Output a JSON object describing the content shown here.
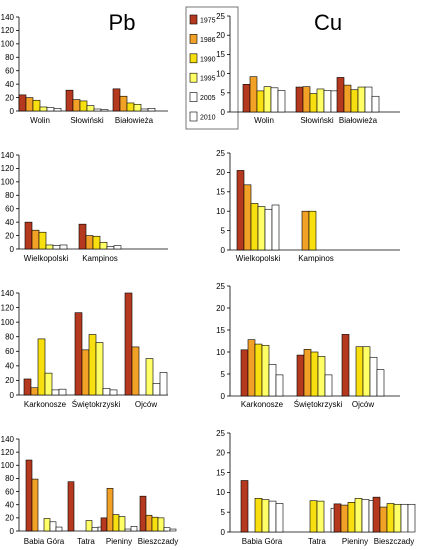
{
  "figure": {
    "title_left": "Pb",
    "title_right": "Cu"
  },
  "legend": {
    "entries": [
      {
        "label": "1975",
        "color": "#b5391e"
      },
      {
        "label": "1986",
        "color": "#f2a127"
      },
      {
        "label": "1990",
        "color": "#f7df10"
      },
      {
        "label": "1995",
        "color": "#ffff66"
      },
      {
        "label": "2005",
        "color": "#ffffff"
      },
      {
        "label": "2010",
        "color": "#ffffff"
      }
    ]
  },
  "chart_data": [
    {
      "type": "bar",
      "panel": "pb-row-1",
      "element": "Pb",
      "categories": [
        "Wolin",
        "Słowiński",
        "Białowieża"
      ],
      "ylim": [
        0,
        140
      ],
      "yticks": [
        0,
        20,
        40,
        60,
        80,
        100,
        120,
        140
      ],
      "series": [
        {
          "name": "1975",
          "values": [
            24,
            31,
            33
          ]
        },
        {
          "name": "1986",
          "values": [
            20,
            17,
            22
          ]
        },
        {
          "name": "1990",
          "values": [
            16,
            15,
            12
          ]
        },
        {
          "name": "1995",
          "values": [
            6,
            8,
            10
          ]
        },
        {
          "name": "2005",
          "values": [
            5,
            3,
            3
          ]
        },
        {
          "name": "2010",
          "values": [
            4,
            2,
            4
          ]
        }
      ]
    },
    {
      "type": "bar",
      "panel": "cu-row-1",
      "element": "Cu",
      "categories": [
        "Wolin",
        "Słowiński",
        "Białowieża"
      ],
      "ylim": [
        0,
        25
      ],
      "yticks": [
        0,
        5,
        10,
        15,
        20,
        25
      ],
      "series": [
        {
          "name": "1975",
          "values": [
            7.2,
            6.5,
            9.0
          ]
        },
        {
          "name": "1986",
          "values": [
            9.2,
            6.6,
            7.0
          ]
        },
        {
          "name": "1990",
          "values": [
            5.5,
            4.8,
            5.8
          ]
        },
        {
          "name": "1995",
          "values": [
            6.6,
            6.0,
            6.5
          ]
        },
        {
          "name": "2005",
          "values": [
            6.3,
            5.6,
            6.5
          ]
        },
        {
          "name": "2010",
          "values": [
            5.6,
            5.5,
            4.1
          ]
        }
      ]
    },
    {
      "type": "bar",
      "panel": "pb-row-2",
      "element": "Pb",
      "categories": [
        "Wielkopolski",
        "Kampinos"
      ],
      "ylim": [
        0,
        140
      ],
      "yticks": [
        0,
        20,
        40,
        60,
        80,
        100,
        120,
        140
      ],
      "series": [
        {
          "name": "1975",
          "values": [
            40,
            37
          ]
        },
        {
          "name": "1986",
          "values": [
            28,
            20
          ]
        },
        {
          "name": "1990",
          "values": [
            25,
            19
          ]
        },
        {
          "name": "1995",
          "values": [
            6,
            10
          ]
        },
        {
          "name": "2005",
          "values": [
            5,
            4
          ]
        },
        {
          "name": "2010",
          "values": [
            6,
            5
          ]
        }
      ]
    },
    {
      "type": "bar",
      "panel": "cu-row-2",
      "element": "Cu",
      "categories": [
        "Wielkopolski",
        "Kampinos"
      ],
      "ylim": [
        0,
        25
      ],
      "yticks": [
        0,
        5,
        10,
        15,
        20,
        25
      ],
      "series": [
        {
          "name": "1975",
          "values": [
            20.5,
            null
          ]
        },
        {
          "name": "1986",
          "values": [
            16.8,
            10.0
          ]
        },
        {
          "name": "1990",
          "values": [
            12.0,
            10.0
          ]
        },
        {
          "name": "1995",
          "values": [
            11.2,
            null
          ]
        },
        {
          "name": "2005",
          "values": [
            10.5,
            null
          ]
        },
        {
          "name": "2010",
          "values": [
            11.6,
            null
          ]
        }
      ]
    },
    {
      "type": "bar",
      "panel": "pb-row-3",
      "element": "Pb",
      "categories": [
        "Karkonosze",
        "Świętokrzyski",
        "Ojców"
      ],
      "ylim": [
        0,
        140
      ],
      "yticks": [
        0,
        20,
        40,
        60,
        80,
        100,
        120,
        140
      ],
      "series": [
        {
          "name": "1975",
          "values": [
            22,
            113,
            140
          ]
        },
        {
          "name": "1986",
          "values": [
            10,
            62,
            66
          ]
        },
        {
          "name": "1990",
          "values": [
            77,
            83,
            null
          ]
        },
        {
          "name": "1995",
          "values": [
            30,
            72,
            50
          ]
        },
        {
          "name": "2005",
          "values": [
            7,
            9,
            16
          ]
        },
        {
          "name": "2010",
          "values": [
            8,
            7,
            31
          ]
        }
      ]
    },
    {
      "type": "bar",
      "panel": "cu-row-3",
      "element": "Cu",
      "categories": [
        "Karkonosze",
        "Świętokrzyski",
        "Ojców"
      ],
      "ylim": [
        0,
        25
      ],
      "yticks": [
        0,
        5,
        10,
        15,
        20,
        25
      ],
      "series": [
        {
          "name": "1975",
          "values": [
            10.5,
            9.3,
            14.0
          ]
        },
        {
          "name": "1986",
          "values": [
            12.8,
            10.6,
            null
          ]
        },
        {
          "name": "1990",
          "values": [
            11.8,
            10.0,
            11.2
          ]
        },
        {
          "name": "1995",
          "values": [
            11.5,
            9.0,
            11.2
          ]
        },
        {
          "name": "2005",
          "values": [
            7.2,
            4.8,
            8.8
          ]
        },
        {
          "name": "2010",
          "values": [
            4.8,
            null,
            6.0
          ]
        }
      ]
    },
    {
      "type": "bar",
      "panel": "pb-row-4",
      "element": "Pb",
      "categories": [
        "Babia Góra",
        "Tatra",
        "Pieniny",
        "Bieszczady"
      ],
      "ylim": [
        0,
        140
      ],
      "yticks": [
        0,
        20,
        40,
        60,
        80,
        100,
        120,
        140
      ],
      "series": [
        {
          "name": "1975",
          "values": [
            108,
            75,
            20,
            53
          ]
        },
        {
          "name": "1986",
          "values": [
            79,
            null,
            65,
            24
          ]
        },
        {
          "name": "1990",
          "values": [
            null,
            null,
            25,
            21
          ]
        },
        {
          "name": "1995",
          "values": [
            19,
            16,
            22,
            20
          ]
        },
        {
          "name": "2005",
          "values": [
            14,
            5,
            3,
            5
          ]
        },
        {
          "name": "2010",
          "values": [
            6,
            6,
            7,
            3
          ]
        }
      ]
    },
    {
      "type": "bar",
      "panel": "cu-row-4",
      "element": "Cu",
      "categories": [
        "Babia Góra",
        "Tatra",
        "Pieniny",
        "Bieszczady"
      ],
      "ylim": [
        0,
        25
      ],
      "yticks": [
        0,
        5,
        10,
        15,
        20,
        25
      ],
      "series": [
        {
          "name": "1975",
          "values": [
            13.0,
            null,
            7.1,
            8.8
          ]
        },
        {
          "name": "1986",
          "values": [
            null,
            null,
            6.8,
            6.3
          ]
        },
        {
          "name": "1990",
          "values": [
            8.5,
            7.9,
            7.5,
            7.2
          ]
        },
        {
          "name": "1995",
          "values": [
            8.2,
            7.8,
            8.5,
            7.0
          ]
        },
        {
          "name": "2005",
          "values": [
            7.8,
            null,
            8.2,
            7.0
          ]
        },
        {
          "name": "2010",
          "values": [
            7.2,
            6.0,
            8.0,
            7.0
          ]
        }
      ]
    }
  ]
}
